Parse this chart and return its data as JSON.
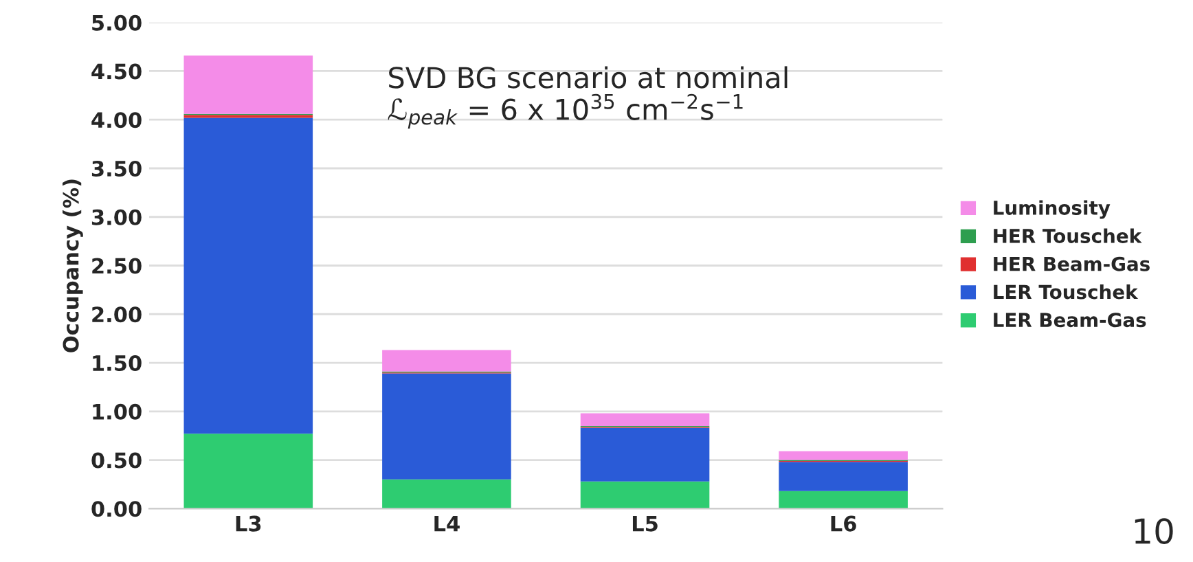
{
  "chart_data": {
    "type": "bar",
    "stacked": true,
    "ylabel": "Occupancy (%)",
    "categories": [
      "L3",
      "L4",
      "L5",
      "L6"
    ],
    "series": [
      {
        "name": "LER Beam-Gas",
        "color": "#2ecc71",
        "values": [
          0.77,
          0.3,
          0.28,
          0.18
        ]
      },
      {
        "name": "LER Touschek",
        "color": "#2a5bd7",
        "values": [
          3.25,
          1.09,
          0.55,
          0.3
        ]
      },
      {
        "name": "HER Beam-Gas",
        "color": "#e03030",
        "values": [
          0.03,
          0.01,
          0.01,
          0.01
        ]
      },
      {
        "name": "HER Touschek",
        "color": "#2e9e4f",
        "values": [
          0.01,
          0.01,
          0.01,
          0.01
        ]
      },
      {
        "name": "Luminosity",
        "color": "#f48ce8",
        "values": [
          0.6,
          0.22,
          0.13,
          0.09
        ]
      }
    ],
    "ylim": [
      0,
      5
    ],
    "yticks": [
      {
        "value": 0,
        "label": "0.00"
      },
      {
        "value": 0.5,
        "label": "0.50"
      },
      {
        "value": 1,
        "label": "1.00"
      },
      {
        "value": 1.5,
        "label": "1.50"
      },
      {
        "value": 2,
        "label": "2.00"
      },
      {
        "value": 2.5,
        "label": "2.50"
      },
      {
        "value": 3,
        "label": "3.00"
      },
      {
        "value": 3.5,
        "label": "3.50"
      },
      {
        "value": 4,
        "label": "4.00"
      },
      {
        "value": 4.5,
        "label": "4.50"
      },
      {
        "value": 5,
        "label": "5.00"
      }
    ],
    "grid": "y",
    "legend": "right",
    "annotations": [
      "SVD BG scenario at nominal\nℒ$_{peak}$ = 6 x 10$^{35}$ cm$^{−2}$s$^{−1}$",
      "10"
    ]
  }
}
